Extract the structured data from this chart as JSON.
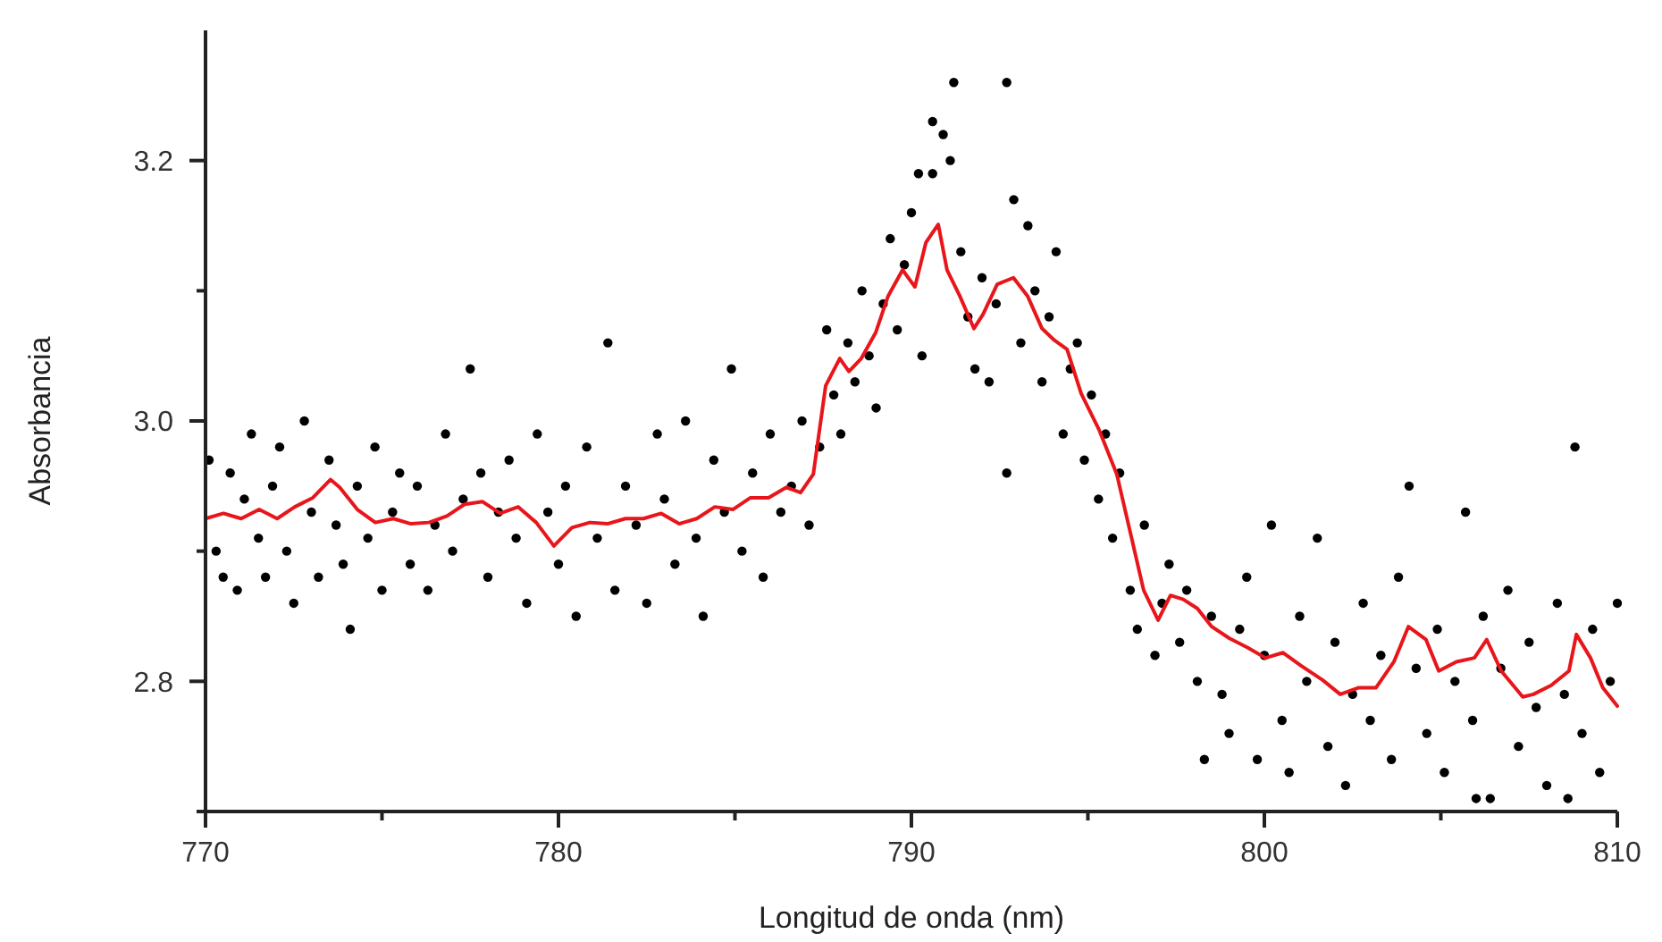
{
  "chart_data": {
    "type": "scatter",
    "xlabel": "Longitud de onda (nm)",
    "ylabel": "Absorbancia",
    "xlim": [
      770,
      810
    ],
    "ylim": [
      2.7,
      3.3
    ],
    "xticks": [
      770,
      {
        "value": 775,
        "label": null
      },
      780,
      {
        "value": 785,
        "label": null
      },
      790,
      {
        "value": 795,
        "label": null
      },
      800,
      {
        "value": 805,
        "label": null
      },
      810
    ],
    "yticks": [
      {
        "value": 2.7,
        "label": null
      },
      {
        "value": 2.8,
        "label": "2.8"
      },
      {
        "value": 2.9,
        "label": null
      },
      {
        "value": 3.0,
        "label": "3.0"
      },
      {
        "value": 3.1,
        "label": null
      },
      {
        "value": 3.2,
        "label": "3.2"
      }
    ],
    "series": [
      {
        "color": "#000000",
        "marker": "circle",
        "x": [
          770.1,
          770.3,
          770.5,
          770.7,
          770.9,
          771.1,
          771.3,
          771.5,
          771.7,
          771.9,
          772.1,
          772.3,
          772.5,
          772.8,
          773.0,
          773.2,
          773.5,
          773.7,
          773.9,
          774.1,
          774.3,
          774.6,
          774.8,
          775.0,
          775.3,
          775.5,
          775.8,
          776.0,
          776.3,
          776.5,
          776.8,
          777.0,
          777.3,
          777.5,
          777.8,
          778.0,
          778.3,
          778.6,
          778.8,
          779.1,
          779.4,
          779.7,
          780.0,
          780.2,
          780.5,
          780.8,
          781.1,
          781.4,
          781.6,
          781.9,
          782.2,
          782.5,
          782.8,
          783.0,
          783.3,
          783.6,
          783.9,
          784.1,
          784.4,
          784.7,
          784.9,
          785.2,
          785.5,
          785.8,
          786.0,
          786.3,
          786.6,
          786.9,
          787.1,
          787.4,
          787.6,
          787.8,
          788.0,
          788.2,
          788.4,
          788.6,
          788.8,
          789.0,
          789.2,
          789.4,
          789.6,
          789.8,
          790.0,
          790.2,
          790.3,
          790.6,
          790.6,
          790.9,
          791.1,
          791.2,
          791.4,
          791.6,
          791.8,
          792.0,
          792.2,
          792.4,
          792.7,
          792.7,
          792.9,
          793.1,
          793.3,
          793.5,
          793.7,
          793.9,
          794.1,
          794.3,
          794.5,
          794.7,
          794.9,
          795.1,
          795.3,
          795.5,
          795.7,
          795.9,
          796.2,
          796.4,
          796.6,
          796.9,
          797.1,
          797.3,
          797.6,
          797.8,
          798.1,
          798.3,
          798.5,
          798.8,
          799.0,
          799.3,
          799.5,
          799.8,
          800.0,
          800.2,
          800.5,
          800.7,
          801.0,
          801.2,
          801.5,
          801.8,
          802.0,
          802.3,
          802.5,
          802.8,
          803.0,
          803.3,
          803.6,
          803.8,
          804.1,
          804.3,
          804.6,
          804.9,
          805.1,
          805.4,
          805.7,
          805.9,
          806.2,
          806.4,
          806.7,
          806.9,
          807.2,
          807.5,
          807.7,
          808.0,
          808.3,
          808.5,
          808.8,
          809.0,
          809.3,
          809.5,
          809.8,
          810.0,
          806.0,
          808.6
        ],
        "values": [
          2.97,
          2.9,
          2.88,
          2.96,
          2.87,
          2.94,
          2.99,
          2.91,
          2.88,
          2.95,
          2.98,
          2.9,
          2.86,
          3.0,
          2.93,
          2.88,
          2.97,
          2.92,
          2.89,
          2.84,
          2.95,
          2.91,
          2.98,
          2.87,
          2.93,
          2.96,
          2.89,
          2.95,
          2.87,
          2.92,
          2.99,
          2.9,
          2.94,
          3.04,
          2.96,
          2.88,
          2.93,
          2.97,
          2.91,
          2.86,
          2.99,
          2.93,
          2.89,
          2.95,
          2.85,
          2.98,
          2.91,
          3.06,
          2.87,
          2.95,
          2.92,
          2.86,
          2.99,
          2.94,
          2.89,
          3.0,
          2.91,
          2.85,
          2.97,
          2.93,
          3.04,
          2.9,
          2.96,
          2.88,
          2.99,
          2.93,
          2.95,
          3.0,
          2.92,
          2.98,
          3.07,
          3.02,
          2.99,
          3.06,
          3.03,
          3.1,
          3.05,
          3.01,
          3.09,
          3.14,
          3.07,
          3.12,
          3.16,
          3.19,
          3.05,
          3.23,
          3.19,
          3.22,
          3.2,
          3.26,
          3.13,
          3.08,
          3.04,
          3.11,
          3.03,
          3.09,
          3.26,
          2.96,
          3.17,
          3.06,
          3.15,
          3.1,
          3.03,
          3.08,
          3.13,
          2.99,
          3.04,
          3.06,
          2.97,
          3.02,
          2.94,
          2.99,
          2.91,
          2.96,
          2.87,
          2.84,
          2.92,
          2.82,
          2.86,
          2.89,
          2.83,
          2.87,
          2.8,
          2.74,
          2.85,
          2.79,
          2.76,
          2.84,
          2.88,
          2.74,
          2.82,
          2.92,
          2.77,
          2.73,
          2.85,
          2.8,
          2.91,
          2.75,
          2.83,
          2.72,
          2.79,
          2.86,
          2.77,
          2.82,
          2.74,
          2.88,
          2.95,
          2.81,
          2.76,
          2.84,
          2.73,
          2.8,
          2.93,
          2.77,
          2.85,
          2.71,
          2.81,
          2.87,
          2.75,
          2.83,
          2.78,
          2.72,
          2.86,
          2.79,
          2.98,
          2.76,
          2.84,
          2.73,
          2.8,
          2.86,
          2.71,
          2.71
        ]
      },
      {
        "type": "line",
        "color": "#e8161b",
        "line_style": "solid",
        "x": [
          770,
          770.51,
          771.01,
          771.52,
          772.03,
          772.53,
          773.04,
          773.54,
          773.8,
          774.3,
          774.81,
          775.32,
          775.82,
          776.33,
          776.84,
          777.34,
          777.85,
          778.35,
          778.86,
          779.37,
          779.87,
          780.38,
          780.89,
          781.39,
          781.9,
          782.41,
          782.91,
          783.42,
          783.92,
          784.43,
          784.94,
          785.44,
          785.95,
          786.46,
          786.86,
          787.22,
          787.57,
          787.97,
          788.23,
          788.58,
          788.99,
          789.34,
          789.75,
          790.1,
          790.41,
          790.76,
          791.01,
          791.37,
          791.77,
          792.03,
          792.43,
          792.89,
          793.29,
          793.7,
          794.05,
          794.41,
          794.81,
          795.32,
          795.82,
          796.23,
          796.58,
          796.99,
          797.34,
          797.7,
          798.1,
          798.51,
          799.01,
          799.52,
          800.03,
          800.53,
          801.04,
          801.65,
          802.15,
          802.66,
          803.16,
          803.67,
          804.08,
          804.58,
          804.94,
          805.44,
          805.95,
          806.3,
          806.71,
          807.32,
          807.62,
          808.13,
          808.63,
          808.84,
          809.24,
          809.59,
          810
        ],
        "values": [
          2.925,
          2.929,
          2.925,
          2.932,
          2.925,
          2.934,
          2.941,
          2.955,
          2.949,
          2.932,
          2.922,
          2.925,
          2.921,
          2.922,
          2.927,
          2.936,
          2.938,
          2.929,
          2.934,
          2.922,
          2.904,
          2.918,
          2.922,
          2.921,
          2.925,
          2.925,
          2.929,
          2.921,
          2.925,
          2.934,
          2.932,
          2.941,
          2.941,
          2.949,
          2.945,
          2.959,
          3.027,
          3.048,
          3.038,
          3.048,
          3.068,
          3.096,
          3.116,
          3.103,
          3.137,
          3.151,
          3.116,
          3.096,
          3.071,
          3.082,
          3.105,
          3.11,
          3.096,
          3.071,
          3.062,
          3.055,
          3.021,
          2.993,
          2.959,
          2.911,
          2.87,
          2.847,
          2.866,
          2.863,
          2.856,
          2.842,
          2.833,
          2.826,
          2.818,
          2.822,
          2.812,
          2.801,
          2.79,
          2.795,
          2.795,
          2.815,
          2.842,
          2.832,
          2.808,
          2.815,
          2.818,
          2.832,
          2.808,
          2.788,
          2.79,
          2.797,
          2.808,
          2.836,
          2.818,
          2.795,
          2.781
        ]
      }
    ]
  }
}
